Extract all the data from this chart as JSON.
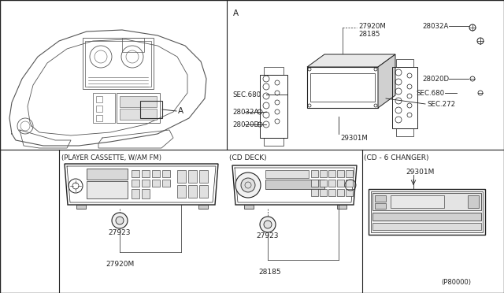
{
  "bg_color": "#ffffff",
  "line_color": "#222222",
  "labels": {
    "A_top_right": "A",
    "27920M_tr": "27920M",
    "28185_tr": "28185",
    "28032A_tr": "28032A",
    "28020D_tr": "28020D",
    "SEC680_tr": "SEC.680",
    "SEC680_tl": "SEC.680",
    "SEC272_tr": "SEC.272",
    "28032A_tl": "28032A",
    "28020D_tl": "28020D",
    "29301M_tr": "29301M",
    "cassette_header": "(PLAYER CASSETTE, W/AM FM)",
    "cd_deck_header": "(CD DECK)",
    "cd_changer_header": "(CD - 6 CHANGER)",
    "27923_cass": "27923",
    "27920M_cass": "27920M",
    "27923_cd": "27923",
    "28185_cd": "28185",
    "29301M_chg": "29301M",
    "catalog": "(P80000)"
  }
}
